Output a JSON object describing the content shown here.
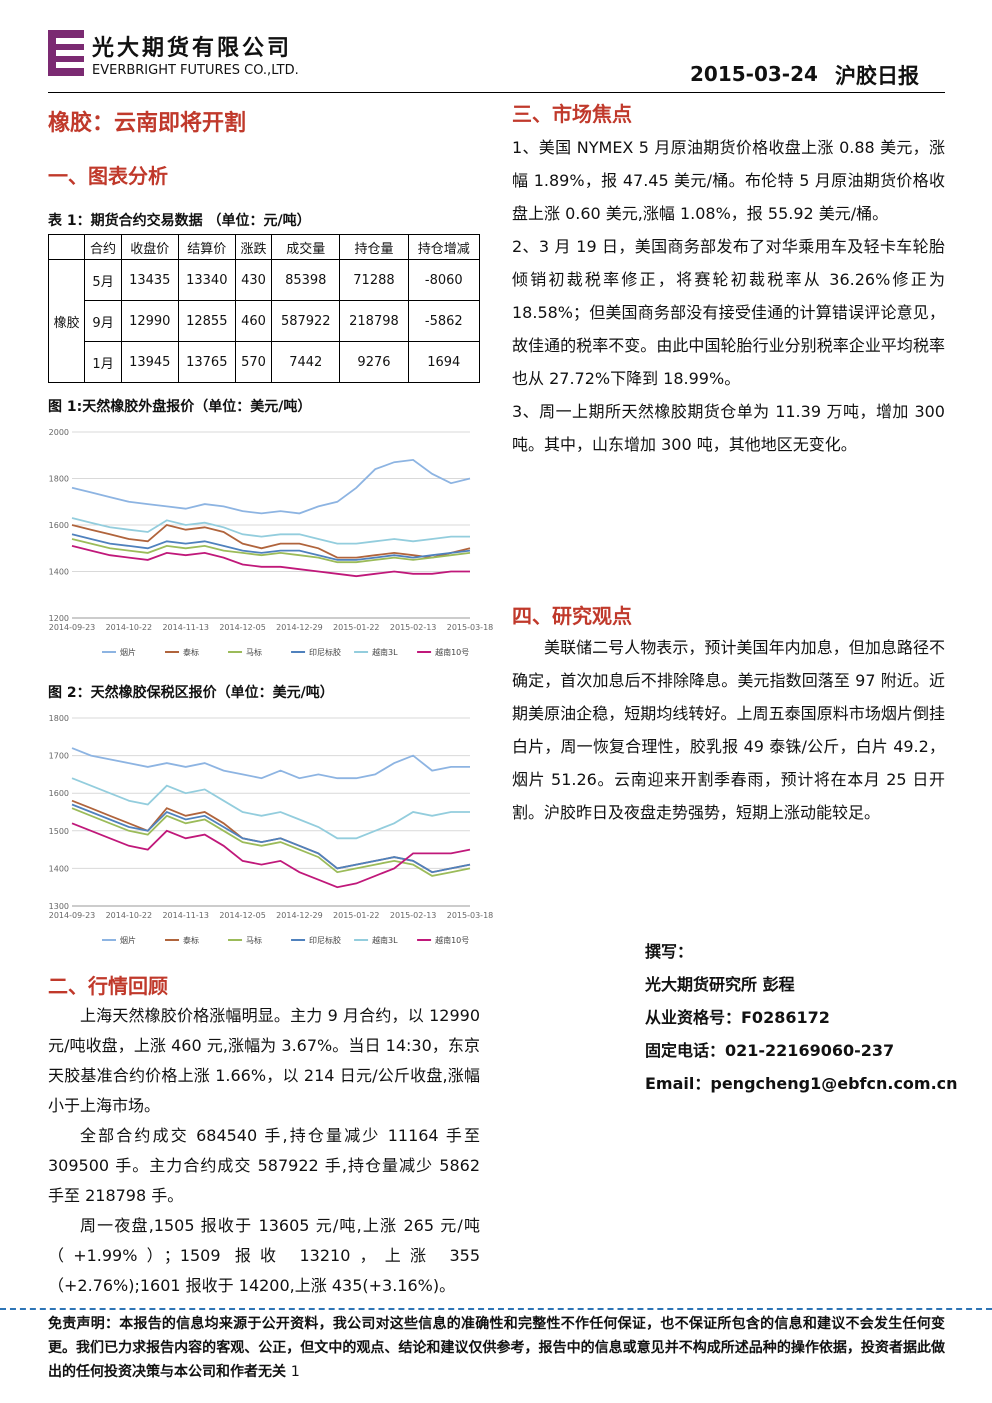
{
  "header": {
    "company_cn": "光大期货有限公司",
    "company_en": "EVERBRIGHT FUTURES CO.,LTD.",
    "date": "2015-03-24",
    "report": "沪胶日报"
  },
  "title": "橡胶：云南即将开割",
  "section1": {
    "heading": "一、图表分析",
    "table_caption": "表 1：期货合约交易数据 （单位：元/吨）",
    "table": {
      "header": [
        "合约",
        "收盘价",
        "结算价",
        "涨跌",
        "成交量",
        "持仓量",
        "持仓增减"
      ],
      "group": "橡胶",
      "rows": [
        [
          "5月",
          13435,
          13340,
          430,
          85398,
          71288,
          -8060
        ],
        [
          "9月",
          12990,
          12855,
          460,
          587922,
          218798,
          -5862
        ],
        [
          "1月",
          13945,
          13765,
          570,
          7442,
          9276,
          1694
        ]
      ]
    }
  },
  "chart_data": [
    {
      "type": "line",
      "title": "图 1:天然橡胶外盘报价（单位：美元/吨）",
      "categories": [
        "2014-09-23",
        null,
        null,
        "2014-10-22",
        null,
        null,
        "2014-11-13",
        null,
        null,
        "2014-12-05",
        null,
        null,
        "2014-12-29",
        null,
        null,
        "2015-01-22",
        null,
        null,
        "2015-02-13",
        null,
        null,
        "2015-03-18"
      ],
      "ylim": [
        1200,
        2000
      ],
      "yticks": [
        1200,
        1400,
        1600,
        1800,
        2000
      ],
      "grid": true,
      "series": [
        {
          "name": "烟片",
          "color": "#8db4e2",
          "values": [
            1760,
            1740,
            1720,
            1700,
            1690,
            1680,
            1670,
            1690,
            1680,
            1660,
            1650,
            1660,
            1650,
            1680,
            1700,
            1760,
            1840,
            1870,
            1880,
            1820,
            1780,
            1800
          ]
        },
        {
          "name": "泰标",
          "color": "#b0643c",
          "values": [
            1600,
            1580,
            1560,
            1540,
            1530,
            1600,
            1580,
            1590,
            1570,
            1520,
            1500,
            1520,
            1520,
            1500,
            1460,
            1460,
            1470,
            1480,
            1470,
            1460,
            1480,
            1500
          ]
        },
        {
          "name": "马标",
          "color": "#9bbb59",
          "values": [
            1540,
            1520,
            1500,
            1490,
            1480,
            1510,
            1500,
            1510,
            1490,
            1480,
            1470,
            1480,
            1470,
            1460,
            1440,
            1440,
            1450,
            1460,
            1450,
            1460,
            1470,
            1480
          ]
        },
        {
          "name": "印尼标胶",
          "color": "#4f81bd",
          "values": [
            1560,
            1540,
            1520,
            1510,
            1500,
            1530,
            1520,
            1530,
            1510,
            1490,
            1480,
            1490,
            1490,
            1470,
            1450,
            1450,
            1460,
            1470,
            1460,
            1470,
            1480,
            1490
          ]
        },
        {
          "name": "越南3L",
          "color": "#93cddd",
          "values": [
            1630,
            1610,
            1590,
            1580,
            1570,
            1620,
            1600,
            1610,
            1590,
            1560,
            1550,
            1560,
            1560,
            1540,
            1520,
            1520,
            1530,
            1540,
            1530,
            1540,
            1550,
            1550
          ]
        },
        {
          "name": "越南10号",
          "color": "#c0187a",
          "values": [
            1510,
            1490,
            1470,
            1460,
            1450,
            1480,
            1470,
            1480,
            1460,
            1430,
            1420,
            1420,
            1410,
            1400,
            1390,
            1380,
            1390,
            1400,
            1390,
            1390,
            1400,
            1400
          ]
        }
      ]
    },
    {
      "type": "line",
      "title": "图 2：天然橡胶保税区报价（单位：美元/吨）",
      "categories": [
        "2014-09-23",
        null,
        null,
        "2014-10-22",
        null,
        null,
        "2014-11-13",
        null,
        null,
        "2014-12-05",
        null,
        null,
        "2014-12-29",
        null,
        null,
        "2015-01-22",
        null,
        null,
        "2015-02-13",
        null,
        null,
        "2015-03-18"
      ],
      "ylim": [
        1300,
        1800
      ],
      "yticks": [
        1300,
        1400,
        1500,
        1600,
        1700,
        1800
      ],
      "grid": true,
      "series": [
        {
          "name": "烟片",
          "color": "#8db4e2",
          "values": [
            1720,
            1700,
            1690,
            1680,
            1670,
            1680,
            1670,
            1680,
            1660,
            1650,
            1640,
            1660,
            1640,
            1650,
            1640,
            1640,
            1650,
            1680,
            1700,
            1660,
            1670,
            1670
          ]
        },
        {
          "name": "泰标",
          "color": "#b0643c",
          "values": [
            1580,
            1560,
            1540,
            1520,
            1500,
            1560,
            1540,
            1550,
            1520,
            1480,
            1470,
            1480,
            1460,
            1440,
            1400,
            1410,
            1420,
            1430,
            1420,
            1390,
            1400,
            1410
          ]
        },
        {
          "name": "马标",
          "color": "#9bbb59",
          "values": [
            1560,
            1540,
            1520,
            1500,
            1490,
            1540,
            1520,
            1530,
            1500,
            1470,
            1460,
            1470,
            1450,
            1430,
            1390,
            1400,
            1410,
            1420,
            1410,
            1380,
            1390,
            1400
          ]
        },
        {
          "name": "印尼标胶",
          "color": "#4f81bd",
          "values": [
            1570,
            1550,
            1530,
            1510,
            1500,
            1550,
            1530,
            1540,
            1510,
            1480,
            1470,
            1480,
            1460,
            1440,
            1400,
            1410,
            1420,
            1430,
            1420,
            1390,
            1400,
            1410
          ]
        },
        {
          "name": "越南3L",
          "color": "#93cddd",
          "values": [
            1640,
            1620,
            1600,
            1580,
            1570,
            1620,
            1600,
            1610,
            1580,
            1550,
            1540,
            1550,
            1530,
            1510,
            1480,
            1480,
            1500,
            1520,
            1550,
            1540,
            1550,
            1550
          ]
        },
        {
          "name": "越南10号",
          "color": "#c0187a",
          "values": [
            1520,
            1500,
            1480,
            1460,
            1450,
            1500,
            1480,
            1490,
            1460,
            1420,
            1410,
            1420,
            1390,
            1370,
            1350,
            1360,
            1380,
            1400,
            1440,
            1440,
            1440,
            1450
          ]
        }
      ]
    }
  ],
  "section2": {
    "heading": "二、行情回顾",
    "paragraphs": [
      "上海天然橡胶价格涨幅明显。主力 9 月合约，以 12990 元/吨收盘，上涨 460 元,涨幅为 3.67%。当日 14:30，东京天胶基准合约价格上涨 1.66%，以 214 日元/公斤收盘,涨幅小于上海市场。",
      "全部合约成交 684540 手,持仓量减少 11164 手至 309500 手。主力合约成交 587922 手,持仓量减少 5862 手至 218798 手。",
      "周一夜盘,1505 报收于 13605 元/吨,上涨 265 元/吨（+1.99%）；1509 报收 13210，上涨 355（+2.76%);1601 报收于 14200,上涨 435(+3.16%)。"
    ]
  },
  "section3": {
    "heading": "三、市场焦点",
    "paragraphs": [
      "1、美国 NYMEX 5 月原油期货价格收盘上涨 0.88 美元，涨幅 1.89%，报 47.45 美元/桶。布伦特 5 月原油期货价格收盘上涨 0.60 美元,涨幅 1.08%，报 55.92 美元/桶。",
      "2、3 月 19 日，美国商务部发布了对华乘用车及轻卡车轮胎倾销初裁税率修正，将赛轮初裁税率从 36.26%修正为 18.58%；但美国商务部没有接受佳通的计算错误评论意见，故佳通的税率不变。由此中国轮胎行业分别税率企业平均税率也从 27.72%下降到 18.99%。",
      "3、周一上期所天然橡胶期货仓单为 11.39 万吨，增加 300 吨。其中，山东增加 300 吨，其他地区无变化。"
    ]
  },
  "section4": {
    "heading": "四、研究观点",
    "paragraphs": [
      "美联储二号人物表示，预计美国年内加息，但加息路径不确定，首次加息后不排除降息。美元指数回落至 97 附近。近期美原油企稳，短期均线转好。上周五泰国原料市场烟片倒挂白片，周一恢复合理性，胶乳报 49 泰铢/公斤，白片 49.2，烟片 51.26。云南迎来开割季春雨，预计将在本月 25 日开割。沪胶昨日及夜盘走势强势，短期上涨动能较足。"
    ]
  },
  "author": [
    "撰写：",
    "光大期货研究所 彭程",
    "从业资格号：F0286172",
    "固定电话：021-22169060-237",
    "Email：pengcheng1@ebfcn.com.cn"
  ],
  "disclaimer": "免责声明：本报告的信息均来源于公开资料，我公司对这些信息的准确性和完整性不作任何保证，也不保证所包含的信息和建议不会发生任何变更。我们已力求报告内容的客观、公正，但文中的观点、结论和建议仅供参考，报告中的信息或意见并不构成所述品种的操作依据，投资者据此做出的任何投资决策与本公司和作者无关",
  "page_number": 1
}
